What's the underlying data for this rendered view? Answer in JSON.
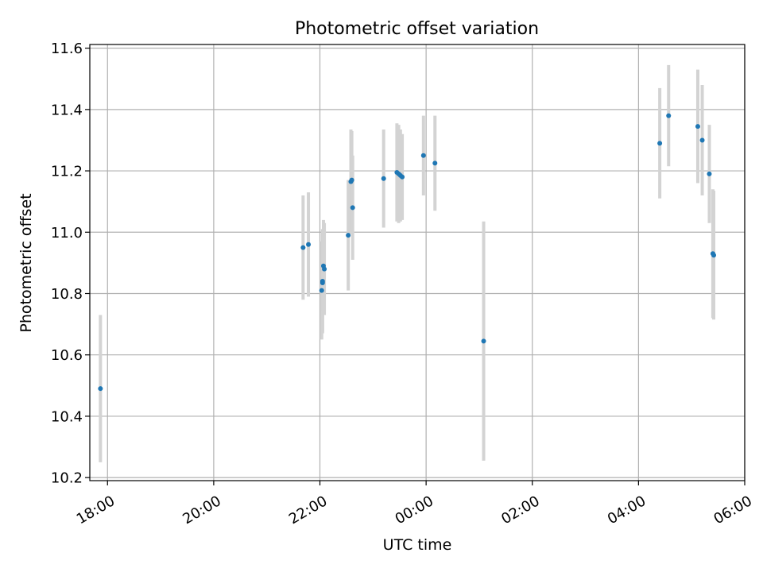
{
  "chart_data": {
    "type": "scatter",
    "title": "Photometric offset variation",
    "xlabel": "UTC time",
    "ylabel": "Photometric offset",
    "xlim": [
      "17:40",
      "06:00"
    ],
    "ylim": [
      10.19,
      11.612
    ],
    "x_ticks": [
      "18:00",
      "20:00",
      "22:00",
      "00:00",
      "02:00",
      "04:00",
      "06:00"
    ],
    "y_ticks": [
      "10.2",
      "10.4",
      "10.6",
      "10.8",
      "11.0",
      "11.2",
      "11.4",
      "11.6"
    ],
    "grid": true,
    "colors": {
      "point": "#1f77b4",
      "errorbar": "#d3d3d3",
      "grid": "#b0b0b0"
    },
    "points": [
      {
        "t": "17:52",
        "y": 10.49,
        "err": 0.24
      },
      {
        "t": "21:41",
        "y": 10.95,
        "err": 0.17
      },
      {
        "t": "21:47",
        "y": 10.96,
        "err": 0.17
      },
      {
        "t": "22:02",
        "y": 10.81,
        "err": 0.16
      },
      {
        "t": "22:03",
        "y": 10.835,
        "err": 0.16
      },
      {
        "t": "22:03",
        "y": 10.84,
        "err": 0.17
      },
      {
        "t": "22:04",
        "y": 10.89,
        "err": 0.15
      },
      {
        "t": "22:05",
        "y": 10.88,
        "err": 0.15
      },
      {
        "t": "22:32",
        "y": 10.99,
        "err": 0.18
      },
      {
        "t": "22:35",
        "y": 11.165,
        "err": 0.17
      },
      {
        "t": "22:36",
        "y": 11.17,
        "err": 0.16
      },
      {
        "t": "22:37",
        "y": 11.08,
        "err": 0.17
      },
      {
        "t": "23:12",
        "y": 11.175,
        "err": 0.16
      },
      {
        "t": "23:27",
        "y": 11.195,
        "err": 0.16
      },
      {
        "t": "23:29",
        "y": 11.19,
        "err": 0.16
      },
      {
        "t": "23:31",
        "y": 11.185,
        "err": 0.15
      },
      {
        "t": "23:33",
        "y": 11.18,
        "err": 0.14
      },
      {
        "t": "23:57",
        "y": 11.25,
        "err": 0.13
      },
      {
        "t": "00:10",
        "y": 11.225,
        "err": 0.155
      },
      {
        "t": "01:05",
        "y": 10.645,
        "err": 0.39
      },
      {
        "t": "04:24",
        "y": 11.29,
        "err": 0.18
      },
      {
        "t": "04:34",
        "y": 11.38,
        "err": 0.165
      },
      {
        "t": "05:07",
        "y": 11.345,
        "err": 0.185
      },
      {
        "t": "05:12",
        "y": 11.3,
        "err": 0.18
      },
      {
        "t": "05:20",
        "y": 11.19,
        "err": 0.16
      },
      {
        "t": "05:24",
        "y": 10.93,
        "err": 0.21
      },
      {
        "t": "05:25",
        "y": 10.925,
        "err": 0.21
      }
    ]
  }
}
